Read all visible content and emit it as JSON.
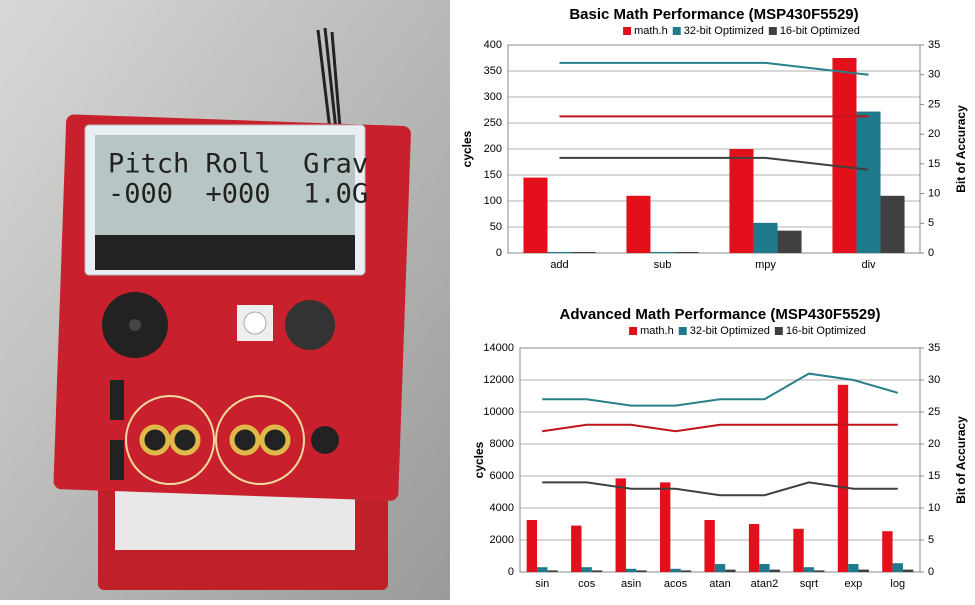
{
  "photo": {
    "lcd": [
      "Pitch Roll  Grav",
      "-000  +000  1.0G"
    ]
  },
  "chart_data": [
    {
      "type": "bar",
      "title": "Basic Math Performance (MSP430F5529)",
      "y_label": "cycles",
      "y2_label": "Bit of Accuracy",
      "categories": [
        "add",
        "sub",
        "mpy",
        "div"
      ],
      "series": [
        {
          "name": "math.h",
          "color": "#e3101b",
          "values": [
            145,
            110,
            200,
            375
          ]
        },
        {
          "name": "32-bit Optimized",
          "color": "#1f7a8c",
          "values": [
            2,
            2,
            58,
            272
          ]
        },
        {
          "name": "16-bit Optimized",
          "color": "#404040",
          "values": [
            2,
            2,
            43,
            110
          ]
        },
        {
          "color": "#2a8088",
          "axis": "y2",
          "values": [
            32,
            32,
            32,
            30
          ]
        },
        {
          "color": "#c0141c",
          "axis": "y2",
          "values": [
            23,
            23,
            23,
            23
          ]
        },
        {
          "color": "#404040",
          "axis": "y2",
          "values": [
            16,
            16,
            16,
            14
          ]
        }
      ],
      "ylim": [
        0,
        400
      ],
      "yticks": [
        0,
        50,
        100,
        150,
        200,
        250,
        300,
        350,
        400
      ],
      "y2lim": [
        0,
        35
      ],
      "y2ticks": [
        0,
        5,
        10,
        15,
        20,
        25,
        30,
        35
      ],
      "grid": true
    },
    {
      "type": "bar",
      "title": "Advanced Math Performance (MSP430F5529)",
      "y_label": "cycles",
      "y2_label": "Bit of Accuracy",
      "categories": [
        "sin",
        "cos",
        "asin",
        "acos",
        "atan",
        "atan2",
        "sqrt",
        "exp",
        "log"
      ],
      "series": [
        {
          "name": "math.h",
          "color": "#e3101b",
          "values": [
            3250,
            2900,
            5850,
            5600,
            3250,
            3000,
            2700,
            11700,
            2550
          ]
        },
        {
          "name": "32-bit Optimized",
          "color": "#1f7a8c",
          "values": [
            300,
            300,
            200,
            200,
            500,
            500,
            300,
            500,
            550
          ]
        },
        {
          "name": "16-bit Optimized",
          "color": "#404040",
          "values": [
            100,
            100,
            100,
            100,
            150,
            150,
            100,
            150,
            150
          ]
        },
        {
          "color": "#2a8088",
          "axis": "y2",
          "values": [
            27,
            27,
            26,
            26,
            27,
            27,
            31,
            30,
            28
          ]
        },
        {
          "color": "#c0141c",
          "axis": "y2",
          "values": [
            22,
            23,
            23,
            22,
            23,
            23,
            23,
            23,
            23
          ]
        },
        {
          "color": "#404040",
          "axis": "y2",
          "values": [
            14,
            14,
            13,
            13,
            12,
            12,
            14,
            13,
            13
          ]
        }
      ],
      "ylim": [
        0,
        14000
      ],
      "yticks": [
        0,
        2000,
        4000,
        6000,
        8000,
        10000,
        12000,
        14000
      ],
      "y2lim": [
        0,
        35
      ],
      "y2ticks": [
        0,
        5,
        10,
        15,
        20,
        25,
        30,
        35
      ],
      "grid": true
    }
  ]
}
